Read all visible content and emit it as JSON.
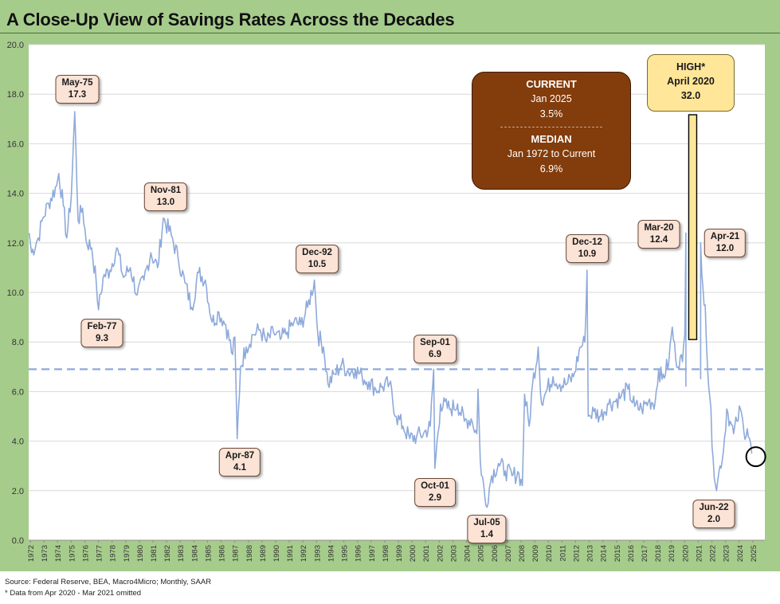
{
  "title": "A Close-Up View of Savings Rates Across the Decades",
  "colors": {
    "frame": "#a6cc8c",
    "plot_bg": "#ffffff",
    "series": "#8eaadb",
    "median_line": "#8eaadb",
    "current_box": "#833c0b",
    "high_box": "#ffe699",
    "callout_bg": "#fbe3d6"
  },
  "current_box": {
    "heading": "CURRENT",
    "date": "Jan 2025",
    "value": "3.5%",
    "median_heading": "MEDIAN",
    "median_range": "Jan 1972 to Current",
    "median_value": "6.9%"
  },
  "high_box": {
    "heading": "HIGH*",
    "date": "April 2020",
    "value": "32.0"
  },
  "annotations": [
    {
      "label": "May-75",
      "value": "17.3"
    },
    {
      "label": "Feb-77",
      "value": "9.3"
    },
    {
      "label": "Nov-81",
      "value": "13.0"
    },
    {
      "label": "Apr-87",
      "value": "4.1"
    },
    {
      "label": "Dec-92",
      "value": "10.5"
    },
    {
      "label": "Sep-01",
      "value": "6.9"
    },
    {
      "label": "Oct-01",
      "value": "2.9"
    },
    {
      "label": "Jul-05",
      "value": "1.4"
    },
    {
      "label": "Dec-12",
      "value": "10.9"
    },
    {
      "label": "Mar-20",
      "value": "12.4"
    },
    {
      "label": "Apr-21",
      "value": "12.0"
    },
    {
      "label": "Jun-22",
      "value": "2.0"
    }
  ],
  "footer": {
    "source": "Source: Federal Reserve, BEA, Macro4Micro; Monthly, SAAR",
    "note": "* Data from Apr 2020 - Mar 2021 omitted"
  },
  "chart_data": {
    "type": "line",
    "title": "A Close-Up View of Savings Rates Across the Decades",
    "xlabel": "",
    "ylabel": "",
    "ylim": [
      0,
      20
    ],
    "xlim": [
      "1972-01",
      "2025-12"
    ],
    "y_ticks": [
      "0.0",
      "2.0",
      "4.0",
      "6.0",
      "8.0",
      "10.0",
      "12.0",
      "14.0",
      "16.0",
      "18.0",
      "20.0"
    ],
    "x_ticks": [
      "1972",
      "1973",
      "1974",
      "1975",
      "1976",
      "1977",
      "1978",
      "1979",
      "1980",
      "1981",
      "1982",
      "1983",
      "1984",
      "1985",
      "1986",
      "1987",
      "1988",
      "1989",
      "1990",
      "1991",
      "1992",
      "1993",
      "1994",
      "1995",
      "1996",
      "1997",
      "1998",
      "1999",
      "2000",
      "2001",
      "2002",
      "2003",
      "2004",
      "2005",
      "2006",
      "2007",
      "2008",
      "2009",
      "2010",
      "2011",
      "2012",
      "2013",
      "2014",
      "2015",
      "2016",
      "2017",
      "2018",
      "2019",
      "2020",
      "2021",
      "2022",
      "2023",
      "2024",
      "2025"
    ],
    "grid": "horizontal",
    "legend": "none",
    "median": 6.9,
    "highlight_marker": {
      "date": "2025-01",
      "value": 3.5
    },
    "series": [
      {
        "values": [
          {
            "date": "1972-01",
            "value": 12.4
          },
          {
            "date": "1972-03",
            "value": 11.6
          },
          {
            "date": "1972-09",
            "value": 12.2
          },
          {
            "date": "1973-01",
            "value": 13.0
          },
          {
            "date": "1973-06",
            "value": 13.6
          },
          {
            "date": "1974-01",
            "value": 14.3
          },
          {
            "date": "1974-03",
            "value": 14.8
          },
          {
            "date": "1974-07",
            "value": 13.5
          },
          {
            "date": "1974-10",
            "value": 12.2
          },
          {
            "date": "1975-02",
            "value": 13.9
          },
          {
            "date": "1975-05",
            "value": 17.3
          },
          {
            "date": "1975-08",
            "value": 12.9
          },
          {
            "date": "1975-12",
            "value": 13.4
          },
          {
            "date": "1976-03",
            "value": 12.1
          },
          {
            "date": "1976-08",
            "value": 11.8
          },
          {
            "date": "1976-12",
            "value": 10.4
          },
          {
            "date": "1977-02",
            "value": 9.3
          },
          {
            "date": "1977-06",
            "value": 10.6
          },
          {
            "date": "1977-12",
            "value": 10.9
          },
          {
            "date": "1978-06",
            "value": 11.8
          },
          {
            "date": "1978-12",
            "value": 10.6
          },
          {
            "date": "1979-06",
            "value": 11.0
          },
          {
            "date": "1979-12",
            "value": 9.9
          },
          {
            "date": "1980-06",
            "value": 10.5
          },
          {
            "date": "1980-12",
            "value": 11.6
          },
          {
            "date": "1981-06",
            "value": 11.0
          },
          {
            "date": "1981-11",
            "value": 13.0
          },
          {
            "date": "1982-06",
            "value": 12.3
          },
          {
            "date": "1982-12",
            "value": 11.4
          },
          {
            "date": "1983-06",
            "value": 10.4
          },
          {
            "date": "1983-12",
            "value": 9.4
          },
          {
            "date": "1984-06",
            "value": 10.8
          },
          {
            "date": "1984-12",
            "value": 10.5
          },
          {
            "date": "1985-06",
            "value": 8.8
          },
          {
            "date": "1985-12",
            "value": 9.2
          },
          {
            "date": "1986-06",
            "value": 8.7
          },
          {
            "date": "1986-12",
            "value": 7.5
          },
          {
            "date": "1987-02",
            "value": 8.2
          },
          {
            "date": "1987-04",
            "value": 4.1
          },
          {
            "date": "1987-07",
            "value": 7.0
          },
          {
            "date": "1987-12",
            "value": 7.8
          },
          {
            "date": "1988-06",
            "value": 8.3
          },
          {
            "date": "1988-12",
            "value": 8.5
          },
          {
            "date": "1989-06",
            "value": 8.0
          },
          {
            "date": "1989-12",
            "value": 8.4
          },
          {
            "date": "1990-06",
            "value": 8.1
          },
          {
            "date": "1990-12",
            "value": 8.4
          },
          {
            "date": "1991-06",
            "value": 8.8
          },
          {
            "date": "1991-12",
            "value": 8.7
          },
          {
            "date": "1992-06",
            "value": 9.4
          },
          {
            "date": "1992-12",
            "value": 10.5
          },
          {
            "date": "1993-03",
            "value": 8.3
          },
          {
            "date": "1993-08",
            "value": 7.8
          },
          {
            "date": "1993-12",
            "value": 6.3
          },
          {
            "date": "1994-06",
            "value": 6.7
          },
          {
            "date": "1994-12",
            "value": 7.1
          },
          {
            "date": "1995-06",
            "value": 6.8
          },
          {
            "date": "1995-12",
            "value": 6.9
          },
          {
            "date": "1996-06",
            "value": 6.6
          },
          {
            "date": "1996-12",
            "value": 6.4
          },
          {
            "date": "1997-06",
            "value": 6.1
          },
          {
            "date": "1997-12",
            "value": 6.2
          },
          {
            "date": "1998-06",
            "value": 6.3
          },
          {
            "date": "1998-12",
            "value": 5.0
          },
          {
            "date": "1999-06",
            "value": 4.6
          },
          {
            "date": "1999-12",
            "value": 4.1
          },
          {
            "date": "2000-06",
            "value": 4.2
          },
          {
            "date": "2000-12",
            "value": 4.3
          },
          {
            "date": "2001-06",
            "value": 4.6
          },
          {
            "date": "2001-09",
            "value": 6.9
          },
          {
            "date": "2001-10",
            "value": 2.9
          },
          {
            "date": "2002-03",
            "value": 5.5
          },
          {
            "date": "2002-12",
            "value": 5.3
          },
          {
            "date": "2003-06",
            "value": 5.5
          },
          {
            "date": "2003-12",
            "value": 4.8
          },
          {
            "date": "2004-06",
            "value": 4.9
          },
          {
            "date": "2004-11",
            "value": 4.3
          },
          {
            "date": "2004-12",
            "value": 6.1
          },
          {
            "date": "2005-02",
            "value": 3.2
          },
          {
            "date": "2005-07",
            "value": 1.4
          },
          {
            "date": "2005-12",
            "value": 2.6
          },
          {
            "date": "2006-06",
            "value": 3.1
          },
          {
            "date": "2006-12",
            "value": 2.8
          },
          {
            "date": "2007-06",
            "value": 2.6
          },
          {
            "date": "2007-12",
            "value": 2.7
          },
          {
            "date": "2008-03",
            "value": 2.2
          },
          {
            "date": "2008-05",
            "value": 5.9
          },
          {
            "date": "2008-09",
            "value": 4.6
          },
          {
            "date": "2008-12",
            "value": 6.3
          },
          {
            "date": "2009-05",
            "value": 7.8
          },
          {
            "date": "2009-08",
            "value": 5.5
          },
          {
            "date": "2009-12",
            "value": 6.0
          },
          {
            "date": "2010-06",
            "value": 6.6
          },
          {
            "date": "2010-12",
            "value": 6.3
          },
          {
            "date": "2011-06",
            "value": 6.3
          },
          {
            "date": "2011-12",
            "value": 6.6
          },
          {
            "date": "2012-06",
            "value": 7.8
          },
          {
            "date": "2012-10",
            "value": 8.0
          },
          {
            "date": "2012-12",
            "value": 10.9
          },
          {
            "date": "2013-01",
            "value": 5.0
          },
          {
            "date": "2013-06",
            "value": 5.2
          },
          {
            "date": "2013-12",
            "value": 5.0
          },
          {
            "date": "2014-06",
            "value": 5.5
          },
          {
            "date": "2014-12",
            "value": 5.6
          },
          {
            "date": "2015-06",
            "value": 5.8
          },
          {
            "date": "2015-12",
            "value": 6.1
          },
          {
            "date": "2016-06",
            "value": 5.4
          },
          {
            "date": "2016-12",
            "value": 5.3
          },
          {
            "date": "2017-06",
            "value": 5.6
          },
          {
            "date": "2017-12",
            "value": 5.6
          },
          {
            "date": "2018-03",
            "value": 6.9
          },
          {
            "date": "2018-06",
            "value": 6.5
          },
          {
            "date": "2018-12",
            "value": 7.2
          },
          {
            "date": "2019-03",
            "value": 8.6
          },
          {
            "date": "2019-06",
            "value": 7.3
          },
          {
            "date": "2019-12",
            "value": 7.2
          },
          {
            "date": "2020-02",
            "value": 8.3
          },
          {
            "date": "2020-03",
            "value": 12.4
          },
          {
            "date": "2021-04",
            "value": 12.0
          },
          {
            "date": "2021-06",
            "value": 10.2
          },
          {
            "date": "2021-08",
            "value": 9.5
          },
          {
            "date": "2021-10",
            "value": 7.0
          },
          {
            "date": "2021-12",
            "value": 5.8
          },
          {
            "date": "2022-03",
            "value": 3.3
          },
          {
            "date": "2022-06",
            "value": 2.0
          },
          {
            "date": "2022-09",
            "value": 3.0
          },
          {
            "date": "2022-12",
            "value": 3.6
          },
          {
            "date": "2023-03",
            "value": 5.3
          },
          {
            "date": "2023-06",
            "value": 4.8
          },
          {
            "date": "2023-09",
            "value": 4.3
          },
          {
            "date": "2023-12",
            "value": 4.8
          },
          {
            "date": "2024-03",
            "value": 5.3
          },
          {
            "date": "2024-06",
            "value": 4.4
          },
          {
            "date": "2024-09",
            "value": 4.5
          },
          {
            "date": "2024-12",
            "value": 3.9
          },
          {
            "date": "2025-01",
            "value": 3.5
          }
        ]
      }
    ]
  }
}
